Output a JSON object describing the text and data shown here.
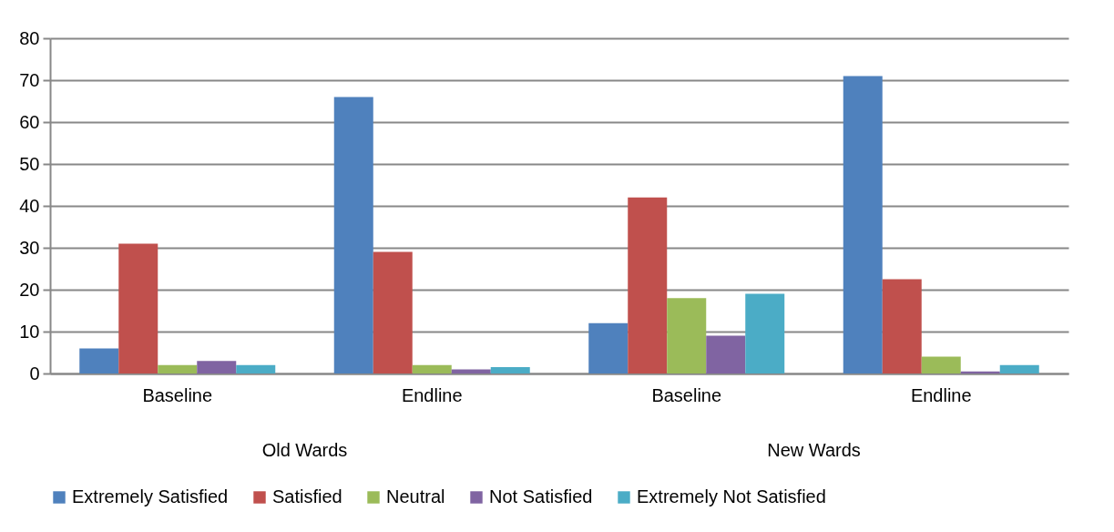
{
  "chart_data": {
    "type": "bar",
    "categories": [
      "Baseline",
      "Endline",
      "Baseline",
      "Endline"
    ],
    "series": [
      {
        "name": "Extremely Satisfied",
        "color": "#4f81bd",
        "values": [
          6,
          66,
          12,
          71
        ]
      },
      {
        "name": "Satisfied",
        "color": "#c0504d",
        "values": [
          31,
          29,
          42,
          22.5
        ]
      },
      {
        "name": "Neutral",
        "color": "#9bbb59",
        "values": [
          2,
          2,
          18,
          4
        ]
      },
      {
        "name": "Not Satisfied",
        "color": "#8064a2",
        "values": [
          3,
          1,
          9,
          0.5
        ]
      },
      {
        "name": "Extremely Not Satisfied",
        "color": "#4bacc6",
        "values": [
          2,
          1.5,
          19,
          2
        ]
      }
    ],
    "annotations": [
      "Old Wards",
      "New Wards"
    ],
    "ylim": [
      0,
      80
    ],
    "yticks": [
      0,
      10,
      20,
      30,
      40,
      50,
      60,
      70,
      80
    ],
    "grid": "y",
    "legend": "bottom"
  }
}
